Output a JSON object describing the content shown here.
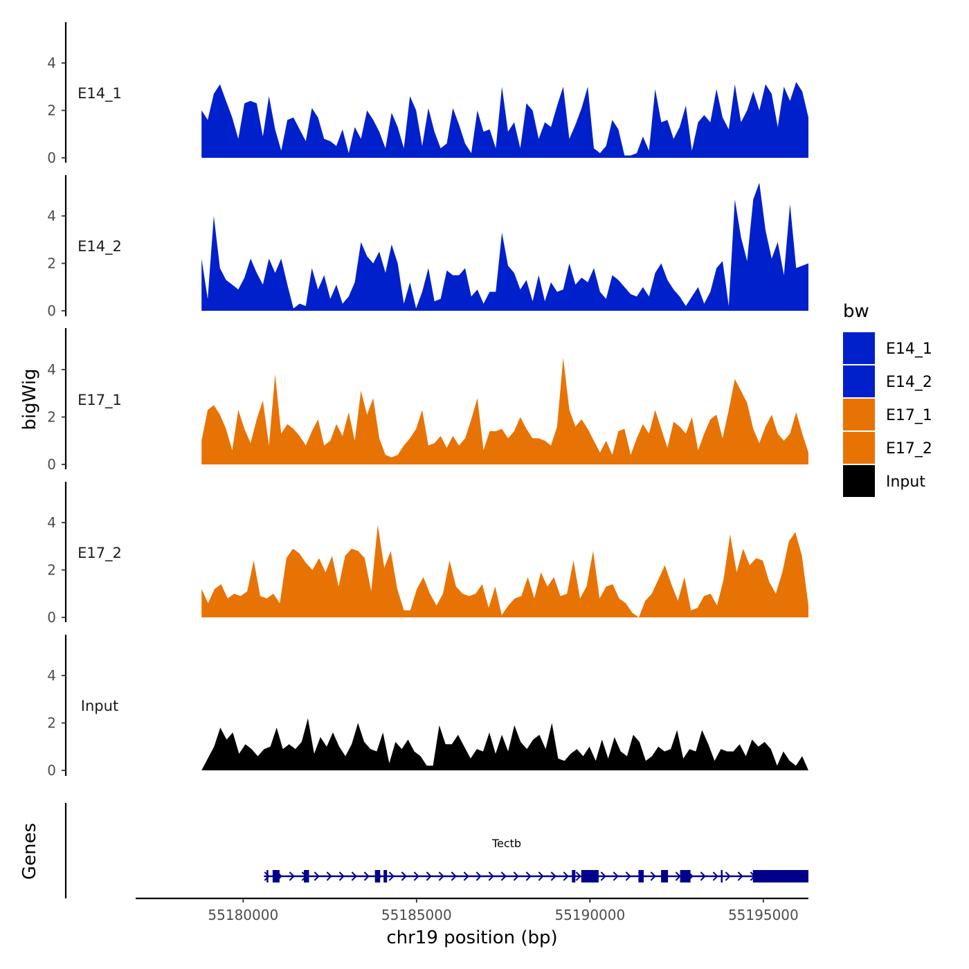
{
  "chart_data": {
    "type": "area",
    "title": "",
    "xlabel": "chr19 position (bp)",
    "ylabel": "bigWig",
    "genes_label": "Genes",
    "xlim": [
      55176900,
      55196300
    ],
    "ylim": [
      0,
      5.5
    ],
    "x_ticks": [
      55180000,
      55185000,
      55190000,
      55195000
    ],
    "x_tick_labels": [
      "55180000",
      "55185000",
      "55190000",
      "55195000"
    ],
    "y_ticks": [
      0,
      2,
      4
    ],
    "y_tick_labels": [
      "0",
      "2",
      "4"
    ],
    "x_range_data": [
      55178800,
      55196300
    ],
    "legend": {
      "title": "bw",
      "position": "right",
      "items": [
        {
          "label": "E14_1",
          "color": "#0020CC"
        },
        {
          "label": "E14_2",
          "color": "#0020CC"
        },
        {
          "label": "E17_1",
          "color": "#E87305"
        },
        {
          "label": "E17_2",
          "color": "#E87305"
        },
        {
          "label": "Input",
          "color": "#000000"
        }
      ]
    },
    "series": [
      {
        "name": "E14_1",
        "color": "#0020CC",
        "values": [
          2.0,
          1.6,
          2.7,
          3.1,
          2.4,
          1.7,
          0.8,
          2.3,
          2.4,
          2.3,
          0.9,
          2.6,
          1.2,
          0.3,
          1.6,
          1.7,
          1.2,
          0.7,
          2.1,
          1.7,
          0.8,
          0.7,
          0.5,
          1.2,
          0.2,
          1.3,
          0.8,
          2.0,
          1.6,
          1.1,
          0.4,
          1.9,
          1.3,
          0.4,
          2.6,
          2.0,
          0.5,
          2.1,
          1.1,
          0.4,
          0.6,
          2.1,
          1.4,
          0.6,
          0.2,
          2.0,
          1.1,
          1.2,
          0.4,
          3.0,
          1.1,
          1.5,
          0.4,
          2.3,
          2.0,
          0.8,
          1.5,
          1.3,
          2.2,
          3.0,
          0.8,
          1.4,
          2.1,
          3.0,
          0.4,
          0.2,
          0.5,
          1.6,
          1.2,
          0.1,
          0.1,
          0.2,
          0.9,
          0.3,
          2.9,
          1.5,
          1.6,
          0.8,
          1.3,
          2.2,
          0.3,
          1.5,
          1.8,
          1.5,
          2.9,
          1.7,
          1.2,
          3.1,
          1.5,
          2.0,
          2.8,
          2.0,
          3.1,
          2.7,
          1.3,
          3.0,
          2.4,
          3.2,
          2.8,
          1.7
        ]
      },
      {
        "name": "E14_2",
        "color": "#0020CC",
        "values": [
          2.2,
          0.5,
          4.0,
          1.8,
          1.3,
          1.1,
          0.9,
          1.4,
          2.2,
          1.6,
          1.1,
          2.2,
          1.6,
          2.2,
          1.1,
          0.1,
          0.3,
          0.2,
          1.8,
          0.9,
          1.5,
          0.5,
          1.1,
          0.3,
          0.6,
          1.2,
          2.9,
          2.3,
          2.0,
          2.5,
          1.6,
          2.8,
          2.0,
          0.3,
          1.2,
          0.1,
          0.8,
          1.8,
          0.4,
          0.5,
          1.7,
          1.5,
          1.5,
          1.8,
          0.6,
          0.9,
          0.3,
          0.8,
          0.8,
          3.3,
          1.9,
          1.6,
          0.9,
          1.3,
          0.4,
          1.5,
          0.4,
          1.2,
          0.8,
          0.9,
          2.0,
          1.1,
          1.4,
          1.2,
          1.8,
          0.8,
          0.5,
          1.5,
          1.3,
          1.0,
          0.7,
          0.6,
          1.0,
          0.6,
          1.6,
          2.0,
          1.3,
          0.9,
          0.6,
          0.2,
          0.6,
          1.0,
          0.3,
          0.8,
          1.8,
          2.1,
          0.2,
          4.7,
          3.1,
          2.1,
          4.7,
          5.4,
          3.4,
          2.2,
          2.9,
          1.5,
          4.5,
          1.8,
          1.9,
          2.0
        ]
      },
      {
        "name": "E17_1",
        "color": "#E87305",
        "values": [
          1.0,
          2.3,
          2.5,
          2.1,
          1.5,
          0.6,
          2.3,
          1.5,
          0.9,
          1.9,
          2.7,
          0.8,
          3.8,
          1.3,
          1.7,
          1.5,
          1.2,
          0.8,
          1.4,
          1.9,
          0.8,
          1.0,
          1.7,
          1.2,
          2.2,
          1.0,
          3.1,
          2.1,
          2.8,
          1.1,
          0.4,
          0.3,
          0.4,
          0.8,
          1.1,
          1.5,
          2.3,
          0.8,
          0.9,
          1.2,
          0.7,
          1.2,
          0.8,
          1.1,
          1.9,
          2.8,
          0.6,
          1.4,
          1.4,
          1.5,
          1.1,
          1.4,
          2.0,
          1.5,
          1.1,
          1.1,
          1.0,
          0.8,
          1.6,
          4.5,
          2.3,
          1.6,
          1.9,
          1.5,
          1.0,
          0.5,
          1.0,
          0.4,
          1.4,
          1.5,
          0.4,
          1.1,
          1.7,
          1.3,
          2.3,
          1.5,
          0.7,
          1.8,
          1.6,
          1.3,
          2.0,
          0.6,
          1.3,
          1.9,
          2.1,
          1.1,
          2.3,
          3.6,
          3.1,
          2.6,
          1.5,
          0.9,
          1.6,
          2.1,
          1.3,
          1.0,
          1.3,
          2.2,
          1.3,
          0.5
        ]
      },
      {
        "name": "E17_2",
        "color": "#E87305",
        "values": [
          1.2,
          0.6,
          1.2,
          1.4,
          0.8,
          1.0,
          0.9,
          1.1,
          2.4,
          0.9,
          0.8,
          1.0,
          0.6,
          2.5,
          2.9,
          2.7,
          2.3,
          2.0,
          2.5,
          1.9,
          2.6,
          1.3,
          2.6,
          2.9,
          2.8,
          2.5,
          1.1,
          3.9,
          2.1,
          2.8,
          1.2,
          0.3,
          0.3,
          1.2,
          1.7,
          1.0,
          0.5,
          1.0,
          2.4,
          1.3,
          1.0,
          0.9,
          1.0,
          1.4,
          0.4,
          1.3,
          0.1,
          0.5,
          0.8,
          0.9,
          1.7,
          0.8,
          1.9,
          1.3,
          1.7,
          0.9,
          1.0,
          2.4,
          0.8,
          1.3,
          2.8,
          0.8,
          1.3,
          1.4,
          0.8,
          0.6,
          0.2,
          0.0,
          0.7,
          1.0,
          1.6,
          2.2,
          1.4,
          0.7,
          1.7,
          0.3,
          0.4,
          0.9,
          1.0,
          0.5,
          1.6,
          3.5,
          1.9,
          2.9,
          2.2,
          2.5,
          2.4,
          1.5,
          1.0,
          1.9,
          3.2,
          3.6,
          2.6,
          0.5
        ]
      },
      {
        "name": "Input",
        "color": "#000000",
        "values": [
          0.0,
          0.5,
          1.0,
          1.8,
          1.3,
          1.6,
          0.7,
          1.1,
          0.9,
          0.6,
          0.9,
          1.0,
          1.8,
          0.9,
          1.1,
          0.9,
          1.2,
          2.2,
          0.7,
          1.4,
          1.0,
          1.6,
          1.0,
          0.6,
          1.1,
          2.0,
          1.2,
          0.9,
          0.8,
          1.6,
          0.3,
          1.2,
          0.9,
          1.3,
          0.8,
          0.6,
          0.2,
          0.2,
          1.9,
          1.1,
          1.1,
          1.5,
          1.0,
          0.5,
          0.9,
          0.8,
          1.6,
          0.7,
          1.5,
          0.8,
          1.9,
          1.2,
          0.9,
          1.3,
          1.5,
          0.9,
          2.0,
          0.5,
          0.4,
          0.7,
          0.9,
          0.6,
          1.0,
          0.4,
          1.3,
          0.5,
          1.4,
          0.8,
          0.6,
          1.5,
          1.2,
          0.4,
          0.6,
          1.0,
          0.8,
          0.9,
          1.7,
          0.5,
          0.9,
          0.8,
          1.7,
          1.1,
          0.4,
          0.9,
          0.8,
          0.8,
          1.1,
          0.6,
          1.3,
          1.0,
          1.2,
          0.9,
          0.2,
          0.8,
          0.4,
          0.2,
          0.6,
          0.0
        ]
      }
    ],
    "gene": {
      "name": "Tectb",
      "color": "#00008B",
      "strand": "+",
      "start": 55180600,
      "end": 55196300,
      "exons": [
        [
          55180850,
          55181050
        ],
        [
          55181750,
          55181900
        ],
        [
          55183800,
          55183950
        ],
        [
          55184050,
          55184150
        ],
        [
          55189480,
          55189580
        ],
        [
          55189750,
          55190250
        ],
        [
          55191400,
          55191550
        ],
        [
          55192050,
          55192250
        ],
        [
          55192600,
          55192900
        ],
        [
          55194700,
          55196300
        ]
      ],
      "intron_lines": [
        55180700,
        55193800
      ]
    }
  }
}
